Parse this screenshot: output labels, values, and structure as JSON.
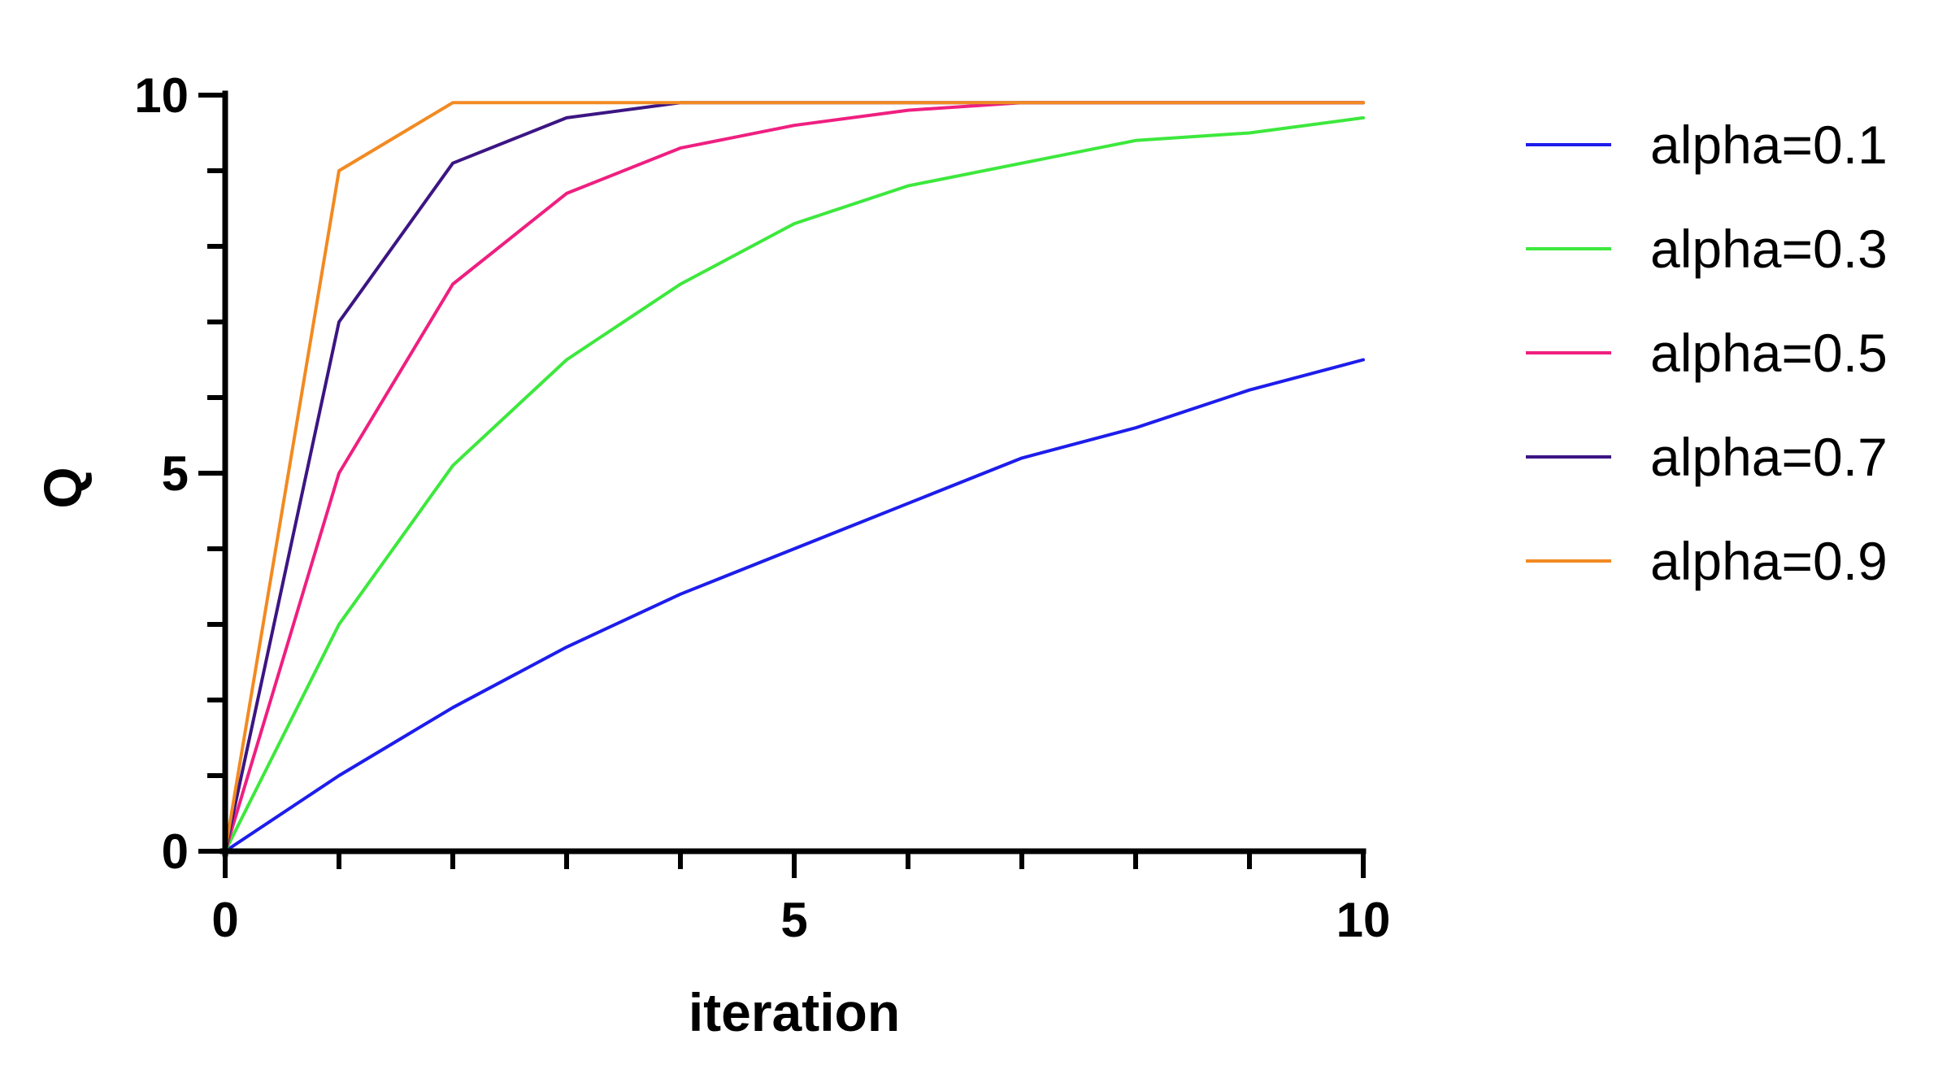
{
  "chart_data": {
    "type": "line",
    "xlabel": "iteration",
    "ylabel": "Q",
    "xlim": [
      0,
      10
    ],
    "ylim": [
      0,
      10
    ],
    "x_ticks": [
      0,
      5,
      10
    ],
    "y_ticks": [
      0,
      5,
      10
    ],
    "x_minor_tick_step": 1,
    "y_minor_tick_step": 1,
    "grid": false,
    "legend_position": "right",
    "x": [
      0,
      1,
      2,
      3,
      4,
      5,
      6,
      7,
      8,
      9,
      10
    ],
    "series": [
      {
        "name": "alpha=0.1",
        "color": "#1d1dec",
        "values": [
          0,
          1.0,
          1.9,
          2.7,
          3.4,
          4.0,
          4.6,
          5.2,
          5.6,
          6.1,
          6.5
        ]
      },
      {
        "name": "alpha=0.3",
        "color": "#3de83d",
        "values": [
          0,
          3.0,
          5.1,
          6.5,
          7.5,
          8.3,
          8.8,
          9.1,
          9.4,
          9.5,
          9.7
        ]
      },
      {
        "name": "alpha=0.5",
        "color": "#ef1f80",
        "values": [
          0,
          5.0,
          7.5,
          8.7,
          9.3,
          9.6,
          9.8,
          9.9,
          9.9,
          9.9,
          9.9
        ]
      },
      {
        "name": "alpha=0.7",
        "color": "#3c1583",
        "values": [
          0,
          7.0,
          9.1,
          9.7,
          9.9,
          9.9,
          9.9,
          9.9,
          9.9,
          9.9,
          9.9
        ]
      },
      {
        "name": "alpha=0.9",
        "color": "#f28a22",
        "values": [
          0,
          9.0,
          9.9,
          9.9,
          9.9,
          9.9,
          9.9,
          9.9,
          9.9,
          9.9,
          9.9
        ]
      }
    ]
  }
}
